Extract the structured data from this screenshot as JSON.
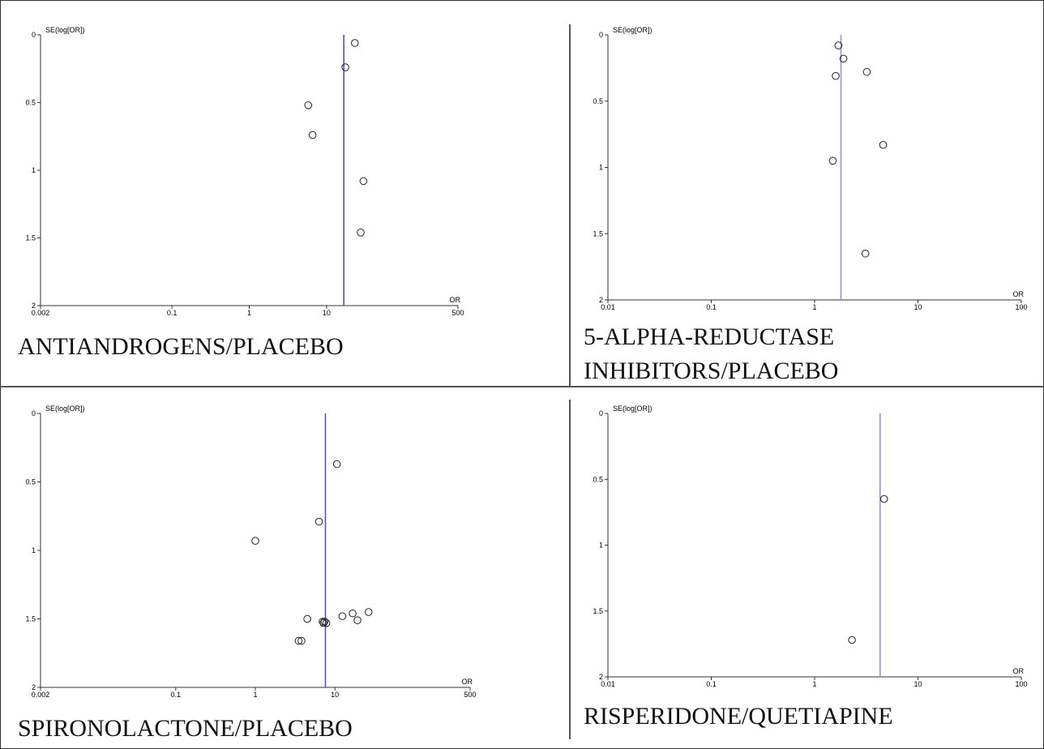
{
  "chart_data": [
    {
      "type": "scatter",
      "title": "ANTIANDROGENS/PLACEBO",
      "xlabel": "OR",
      "ylabel": "SE(log[OR])",
      "x_scale": "log",
      "xlim": [
        0.002,
        500
      ],
      "xticks": [
        "0.002",
        "0.1",
        "1",
        "10",
        "500"
      ],
      "ylim": [
        0,
        2
      ],
      "y_reversed": true,
      "yticks": [
        "0",
        "0.5",
        "1",
        "1.5",
        "2"
      ],
      "pooled_or": 16.7,
      "line_color": "#5b4fc4",
      "points": [
        {
          "x": 23.2,
          "y": 0.06
        },
        {
          "x": 17.5,
          "y": 0.24
        },
        {
          "x": 5.8,
          "y": 0.52
        },
        {
          "x": 6.6,
          "y": 0.74
        },
        {
          "x": 30,
          "y": 1.08
        },
        {
          "x": 27.6,
          "y": 1.46
        }
      ]
    },
    {
      "type": "scatter",
      "title": "5-ALPHA-REDUCTASE INHIBITORS/PLACEBO",
      "title_lines": [
        "5-ALPHA-REDUCTASE",
        "INHIBITORS/PLACEBO"
      ],
      "xlabel": "OR",
      "ylabel": "SE(log[OR])",
      "x_scale": "log",
      "xlim": [
        0.01,
        100
      ],
      "xticks": [
        "0.01",
        "0.1",
        "1",
        "10",
        "100"
      ],
      "ylim": [
        0,
        2
      ],
      "y_reversed": true,
      "yticks": [
        "0",
        "0.5",
        "1",
        "1.5",
        "2"
      ],
      "pooled_or": 1.8,
      "line_color": "#9b8fe0",
      "points": [
        {
          "x": 1.7,
          "y": 0.08
        },
        {
          "x": 1.9,
          "y": 0.18
        },
        {
          "x": 1.6,
          "y": 0.31
        },
        {
          "x": 3.2,
          "y": 0.28
        },
        {
          "x": 4.6,
          "y": 0.83
        },
        {
          "x": 1.5,
          "y": 0.95
        },
        {
          "x": 3.1,
          "y": 1.65
        }
      ]
    },
    {
      "type": "scatter",
      "title": "SPIRONOLACTONE/PLACEBO",
      "xlabel": "OR",
      "ylabel": "SE(log[OR])",
      "x_scale": "log",
      "xlim": [
        0.002,
        500
      ],
      "xticks": [
        "0.002",
        "0.1",
        "1",
        "10",
        "500"
      ],
      "ylim": [
        0,
        2
      ],
      "y_reversed": true,
      "yticks": [
        "0",
        "0.5",
        "1",
        "1.5",
        "2"
      ],
      "pooled_or": 7.6,
      "line_color": "#5b4fc4",
      "points": [
        {
          "x": 10.6,
          "y": 0.37
        },
        {
          "x": 6.3,
          "y": 0.79
        },
        {
          "x": 1.0,
          "y": 0.93
        },
        {
          "x": 4.5,
          "y": 1.5
        },
        {
          "x": 12.4,
          "y": 1.48
        },
        {
          "x": 16.7,
          "y": 1.46
        },
        {
          "x": 19.2,
          "y": 1.51
        },
        {
          "x": 26.5,
          "y": 1.45
        },
        {
          "x": 7.0,
          "y": 1.52
        },
        {
          "x": 7.2,
          "y": 1.53
        },
        {
          "x": 7.4,
          "y": 1.52
        },
        {
          "x": 7.8,
          "y": 1.53
        },
        {
          "x": 3.5,
          "y": 1.66
        },
        {
          "x": 3.8,
          "y": 1.66
        }
      ]
    },
    {
      "type": "scatter",
      "title": "RISPERIDONE/QUETIAPINE",
      "xlabel": "OR",
      "ylabel": "SE(log[OR])",
      "x_scale": "log",
      "xlim": [
        0.01,
        100
      ],
      "xticks": [
        "0.01",
        "0.1",
        "1",
        "10",
        "100"
      ],
      "ylim": [
        0,
        2
      ],
      "y_reversed": true,
      "yticks": [
        "0",
        "0.5",
        "1",
        "1.5",
        "2"
      ],
      "pooled_or": 4.3,
      "line_color": "#9b8fe0",
      "points": [
        {
          "x": 4.7,
          "y": 0.65
        },
        {
          "x": 2.3,
          "y": 1.72
        }
      ]
    }
  ]
}
